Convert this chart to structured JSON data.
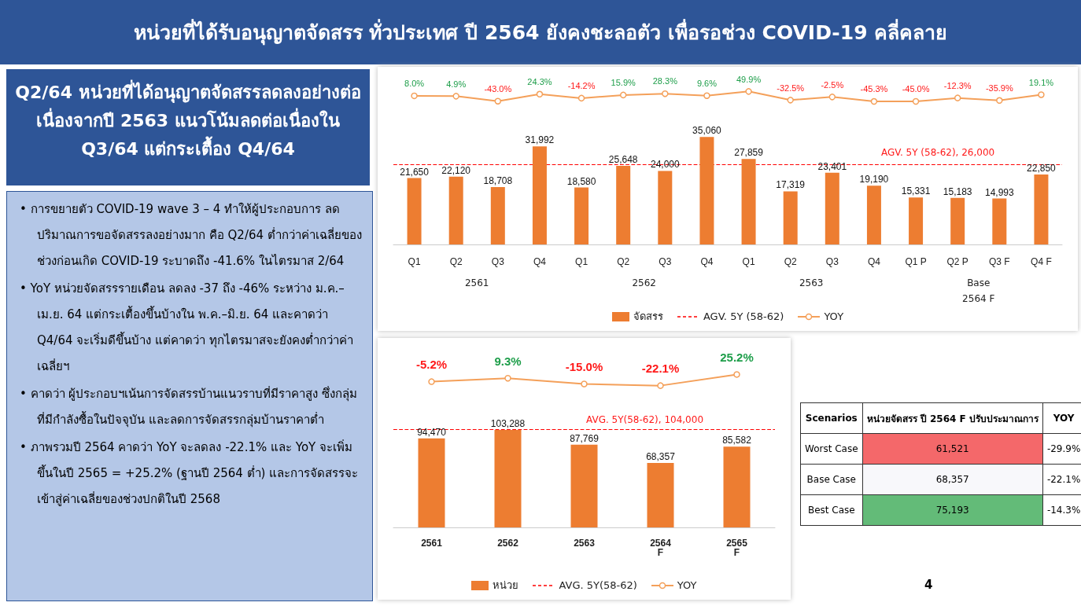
{
  "chart_data": [
    {
      "type": "other",
      "title": "หน่วยที่ได้รับอนุญาตจัดสรร ทั่วประเทศ ปี 2564 ยังคงชะลอตัว เพื่อรอช่วง COVID-19 คลี่คลาย",
      "subtitle": "Q2/64 หน่วยที่ได้อนุญาตจัดสรรลดลงอย่างต่อเนื่องจากปี 2563 แนวโน้มลดต่อเนื่องใน Q3/64 แต่กระเตื้อง Q4/64",
      "annotations": [
        "• การขยายตัว COVID-19 wave 3 – 4 ทำให้ผู้ประกอบการ ลดปริมาณการขอจัดสรรลงอย่างมาก คือ Q2/64 ต่ำกว่าค่าเฉลี่ยของช่วงก่อนเกิด COVID-19 ระบาดถึง -41.6% ในไตรมาส 2/64",
        "• YoY หน่วยจัดสรรรายเดือน ลดลง -37 ถึง -46% ระหว่าง ม.ค.–เม.ย. 64 แต่กระเตื้องขึ้นบ้างใน พ.ค.–มิ.ย. 64 และคาดว่า Q4/64 จะเริ่มดีขึ้นบ้าง แต่คาดว่า ทุกไตรมาสจะยังคงต่ำกว่าค่าเฉลี่ยฯ",
        "• คาดว่า ผู้ประกอบฯเน้นการจัดสรรบ้านแนวราบที่มีราคาสูง ซึ่งกลุ่มที่มีกำลังซื้อในปัจจุบัน และลดการจัดสรรกลุ่มบ้านราคาต่ำ",
        "• ภาพรวมปี 2564 คาดว่า YoY จะลดลง -22.1% และ YoY จะเพิ่มขึ้นในปี 2565 = +25.2% (ฐานปี 2564 ต่ำ) และการจัดสรรจะเข้าสู่ค่าเฉลี่ยของช่วงปกติในปี 2568"
      ]
    },
    {
      "type": "line",
      "categories": [
        null,
        null,
        null,
        null,
        null,
        null,
        null,
        null,
        null,
        null,
        null,
        null,
        null,
        null,
        null,
        null
      ],
      "series": [
        {
          "name": "YOY",
          "color": "#f4a05a",
          "values": [
            8.0,
            4.9,
            -43.0,
            24.3,
            -14.2,
            15.9,
            28.3,
            9.6,
            49.9,
            -32.5,
            -2.5,
            -45.3,
            -45.0,
            -12.3,
            -35.9,
            19.1
          ],
          "value_labels": [
            "8.0%",
            "4.9%",
            "-43.0%",
            "24.3%",
            "-14.2%",
            "15.9%",
            "28.3%",
            "9.6%",
            "49.9%",
            "-32.5%",
            "-2.5%",
            "-45.3%",
            "-45.0%",
            "-12.3%",
            "-35.9%",
            "19.1%"
          ]
        }
      ],
      "marker": "circle",
      "legend": "bottom",
      "tick_labels": false
    },
    {
      "type": "bar",
      "categories": [
        "Q1",
        "Q2",
        "Q3",
        "Q4",
        "Q1",
        "Q2",
        "Q3",
        "Q4",
        "Q1",
        "Q2",
        "Q3",
        "Q4",
        "Q1 P",
        "Q2 P",
        "Q3 F",
        "Q4 F"
      ],
      "series": [
        {
          "name": "จัดสรร",
          "color": "#ed7d31",
          "values": [
            21650,
            22120,
            18708,
            31992,
            18580,
            25648,
            24000,
            35060,
            27859,
            17319,
            23401,
            19190,
            15331,
            15183,
            14993,
            22850
          ],
          "value_labels": [
            "21,650",
            "22,120",
            "18,708",
            "31,992",
            "18,580",
            "25,648",
            "24,000",
            "35,060",
            "27,859",
            "17,319",
            "23,401",
            "19,190",
            "15,331",
            "15,183",
            "14,993",
            "22,850"
          ]
        }
      ],
      "ref_lines": [
        {
          "axis": "y",
          "value": 26000,
          "label": "AGV. 5Y (58-62)",
          "color": "#ff0000",
          "line_style": "dashed"
        }
      ],
      "annotations": [
        {
          "text": "AGV. 5Y (58-62),  26,000",
          "y": 26000
        },
        "2561",
        "2562",
        "2563",
        "Base\n2564 F"
      ],
      "legend": "bottom",
      "tick_labels": "x"
    },
    {
      "type": "line",
      "categories": [
        null,
        null,
        null,
        null,
        null
      ],
      "series": [
        {
          "name": "YOY",
          "color": "#f4a05a",
          "values": [
            -5.2,
            9.3,
            -15.0,
            -22.1,
            25.2
          ],
          "value_labels": [
            "-5.2%",
            "9.3%",
            "-15.0%",
            "-22.1%",
            "25.2%"
          ]
        }
      ],
      "marker": "circle",
      "legend": "bottom",
      "tick_labels": false
    },
    {
      "type": "bar",
      "categories": [
        "2561",
        "2562",
        "2563",
        "2564\nF",
        "2565\nF"
      ],
      "series": [
        {
          "name": "หน่วย",
          "color": "#ed7d31",
          "values": [
            94470,
            103288,
            87769,
            68357,
            85582
          ],
          "value_labels": [
            "94,470",
            "103,288",
            "87,769",
            "68,357",
            "85,582"
          ]
        }
      ],
      "ref_lines": [
        {
          "axis": "y",
          "value": 104000,
          "label": "AVG. 5Y(58-62)",
          "color": "#ff0000",
          "line_style": "dashed"
        }
      ],
      "annotations": [
        {
          "text": "AVG. 5Y(58-62),  104,000",
          "y": 104000
        }
      ],
      "legend": "bottom",
      "tick_labels": "x"
    },
    {
      "type": "other",
      "annotations": [
        "Scenarios",
        "หน่วยจัดสรร ปี 2564 F ปรับประมาณการ",
        "YOY",
        "Worst Case",
        "61,521",
        "-29.9%",
        "Base Case",
        "68,357",
        "-22.1%",
        "Best Case",
        "75,193",
        "-14.3%",
        "4"
      ],
      "colors": [
        null,
        null,
        null,
        null,
        "#f4686a",
        null,
        null,
        "#f8f8fb",
        null,
        null,
        "#63bb78",
        null
      ]
    }
  ]
}
